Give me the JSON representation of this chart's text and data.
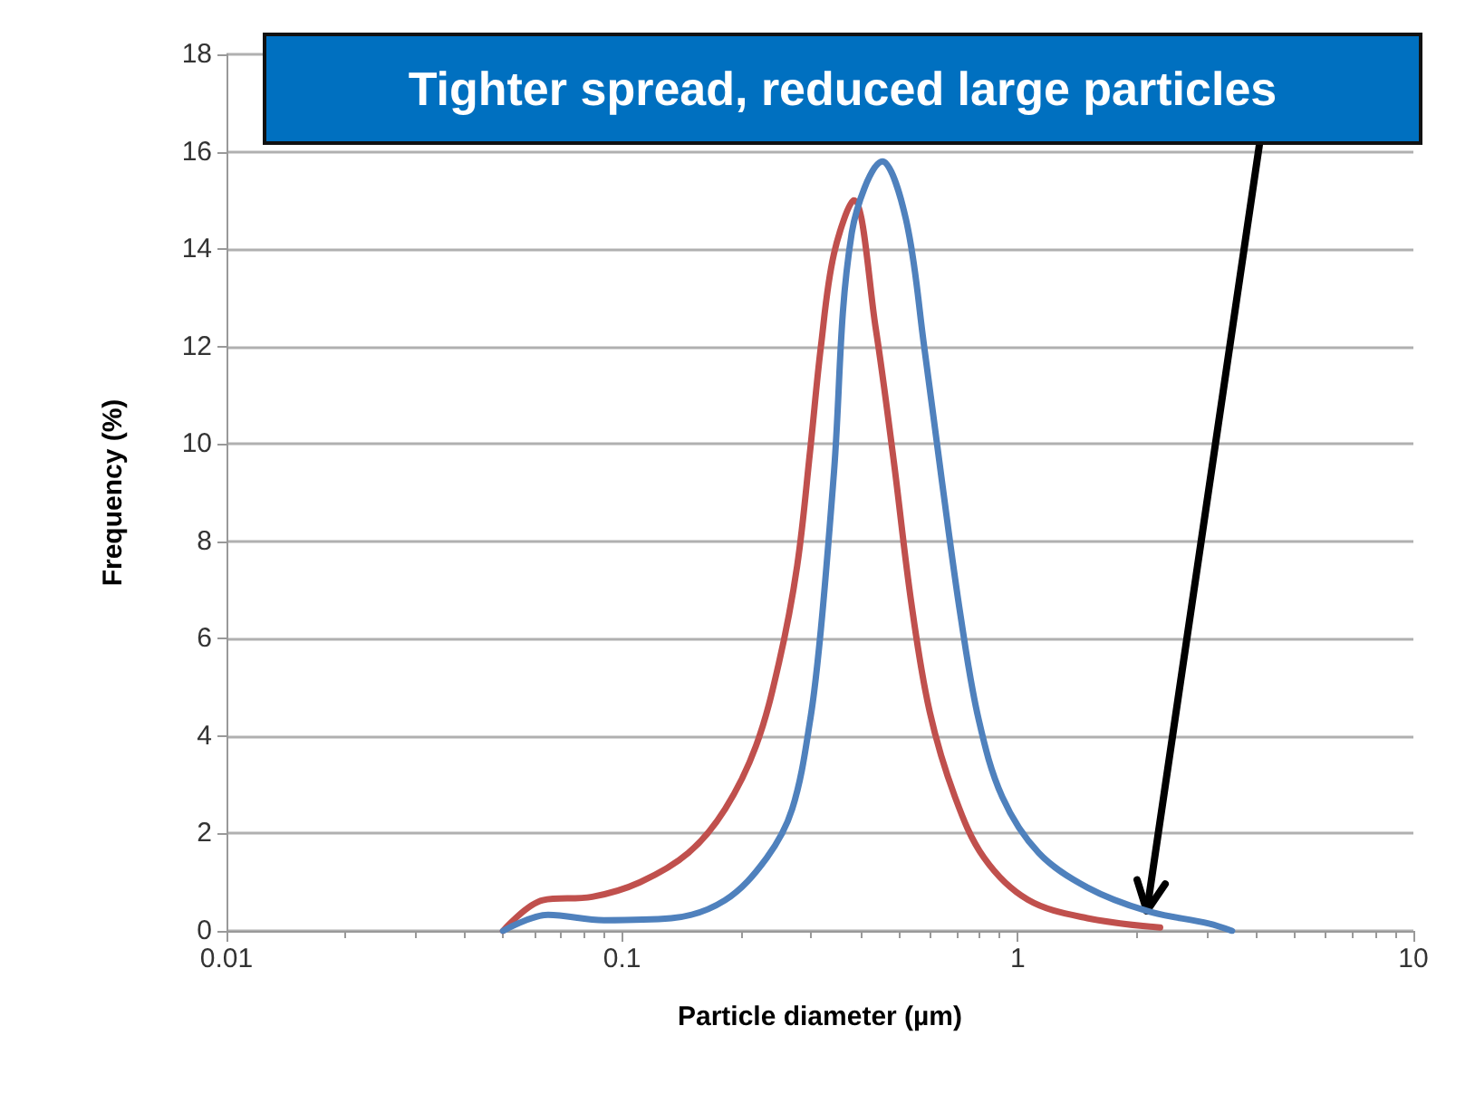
{
  "chart_data": {
    "type": "line",
    "xlabel": "Particle diameter (µm)",
    "ylabel": "Frequency (%)",
    "log": "x",
    "xlim": [
      0.01,
      10
    ],
    "xticks": [
      0.01,
      0.1,
      1,
      10
    ],
    "ylim": [
      0,
      18
    ],
    "yticks": [
      0,
      2,
      4,
      6,
      8,
      10,
      12,
      14,
      16,
      18
    ],
    "grid": "y",
    "marker": "none",
    "line_style": "solid",
    "annotations": [
      {
        "text": "Tighter spread, reduced large particles",
        "x": 2.12,
        "y": 0.41
      }
    ],
    "series": [
      {
        "color": "#c0504d",
        "x": [
          0.05,
          0.063,
          0.084,
          0.111,
          0.147,
          0.182,
          0.218,
          0.249,
          0.277,
          0.299,
          0.318,
          0.343,
          0.385,
          0.437,
          0.485,
          0.539,
          0.599,
          0.694,
          0.822,
          1.06,
          1.5,
          2.29
        ],
        "values": [
          0,
          0.63,
          0.7,
          1.0,
          1.6,
          2.5,
          3.8,
          5.5,
          7.5,
          9.9,
          12.0,
          13.9,
          15.0,
          12.4,
          9.7,
          6.7,
          4.5,
          2.75,
          1.5,
          0.64,
          0.26,
          0.07
        ]
      },
      {
        "color": "#4f81bd",
        "x": [
          0.05,
          0.065,
          0.09,
          0.133,
          0.182,
          0.232,
          0.269,
          0.299,
          0.318,
          0.343,
          0.38,
          0.455,
          0.522,
          0.58,
          0.644,
          0.716,
          0.796,
          0.914,
          1.13,
          1.5,
          2.12,
          3.04,
          3.48
        ],
        "values": [
          0,
          0.33,
          0.22,
          0.26,
          0.63,
          1.5,
          2.5,
          4.35,
          6.2,
          9.4,
          14.3,
          15.8,
          14.6,
          12.0,
          9.2,
          6.5,
          4.35,
          2.75,
          1.6,
          0.89,
          0.41,
          0.15,
          0
        ]
      }
    ]
  }
}
